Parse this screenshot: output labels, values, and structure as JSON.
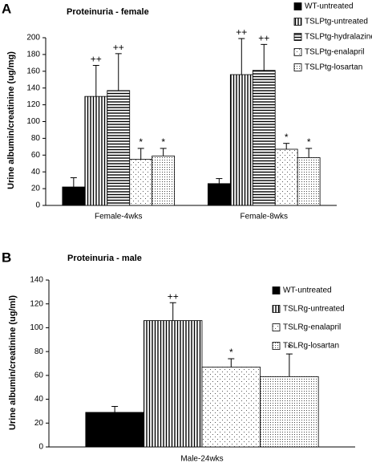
{
  "chart_data": [
    {
      "type": "bar",
      "panel_label": "A",
      "title": "Proteinuria - female",
      "y_label": "Urine albumin/creatinine (ug/mg)",
      "categories": [
        "Female-4wks",
        "Female-8wks"
      ],
      "ylim": [
        0,
        200
      ],
      "yticks": [
        0,
        20,
        40,
        60,
        80,
        100,
        120,
        140,
        160,
        180,
        200
      ],
      "series": [
        {
          "name": "WT-untreated",
          "color": "#000000",
          "pattern": "solid",
          "values": [
            22,
            26
          ],
          "errors": [
            11,
            6
          ]
        },
        {
          "name": "TSLPtg-untreated",
          "color": "#000000",
          "pattern": "vertical-lines",
          "values": [
            130,
            156
          ],
          "errors": [
            37,
            43
          ],
          "annotations": [
            "++",
            "++"
          ]
        },
        {
          "name": "TSLPtg-hydralazine",
          "color": "#000000",
          "pattern": "horizontal-lines",
          "values": [
            137,
            161
          ],
          "errors": [
            44,
            31
          ],
          "annotations": [
            "++",
            "++"
          ]
        },
        {
          "name": "TSLPtg-enalapril",
          "color": "#000000",
          "pattern": "sparse-dots",
          "values": [
            55,
            67
          ],
          "errors": [
            13,
            7
          ],
          "annotations": [
            "*",
            "*"
          ]
        },
        {
          "name": "TSLPtg-losartan",
          "color": "#000000",
          "pattern": "dots",
          "values": [
            59,
            57
          ],
          "errors": [
            9,
            11
          ],
          "annotations": [
            "*",
            "*"
          ]
        }
      ]
    },
    {
      "type": "bar",
      "panel_label": "B",
      "title": "Proteinuria - male",
      "y_label": "Urine albumin/creatinine (ug/ml)",
      "categories": [
        "Male-24wks"
      ],
      "ylim": [
        0,
        140
      ],
      "yticks": [
        0,
        20,
        40,
        60,
        80,
        100,
        120,
        140
      ],
      "series": [
        {
          "name": "WT-untreated",
          "color": "#000000",
          "pattern": "solid",
          "values": [
            29
          ],
          "errors": [
            5
          ]
        },
        {
          "name": "TSLRg-untreated",
          "color": "#000000",
          "pattern": "vertical-lines",
          "values": [
            106
          ],
          "errors": [
            15
          ],
          "annotations": [
            "++"
          ]
        },
        {
          "name": "TSLRg-enalapril",
          "color": "#000000",
          "pattern": "sparse-dots",
          "values": [
            67
          ],
          "errors": [
            7
          ],
          "annotations": [
            "*"
          ]
        },
        {
          "name": "TSLRg-losartan",
          "color": "#000000",
          "pattern": "dots",
          "values": [
            59
          ],
          "errors": [
            19
          ],
          "annotations": [
            "*"
          ]
        }
      ]
    }
  ]
}
